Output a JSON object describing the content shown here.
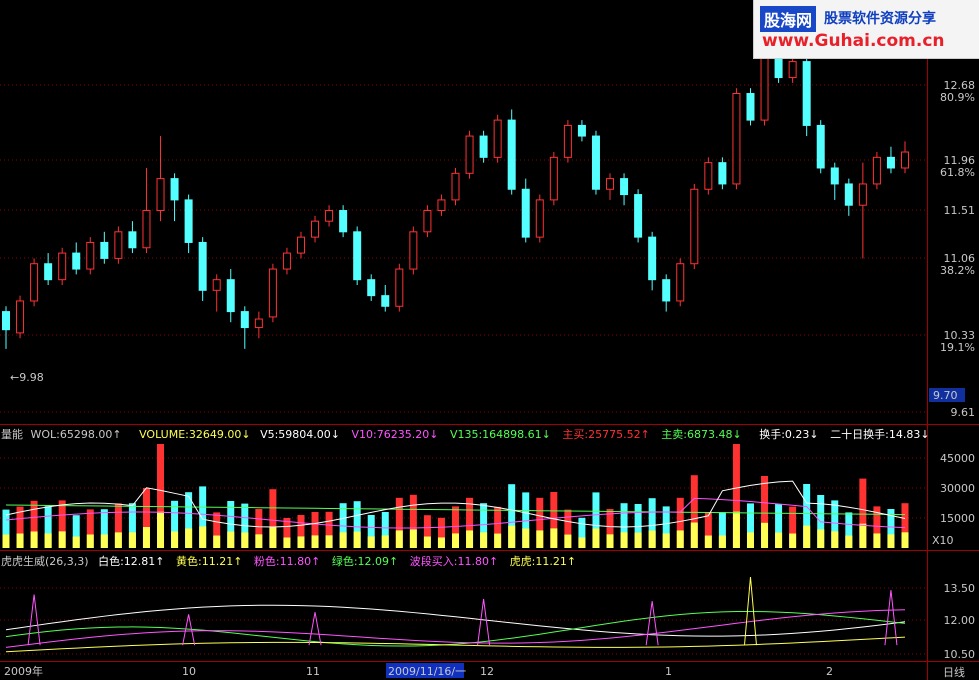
{
  "colors": {
    "up": "#ff3232",
    "down": "#54ffff",
    "white": "#ffffff",
    "yellow": "#ffff54",
    "pink": "#ff54ff",
    "green": "#54ff54",
    "grid": "#7a0000",
    "axis": "#ff3232",
    "ma5": "#ffffff",
    "ma10": "#ff54ff",
    "ma135": "#54ff54"
  },
  "watermark": {
    "brand": "股海网",
    "slogan": "股票软件资源分享",
    "url": "www.Guhai.com.cn"
  },
  "price_axis": [
    {
      "value": "12.68",
      "pct": "80.9%"
    },
    {
      "value": "11.96",
      "pct": "61.8%"
    },
    {
      "value": "11.51",
      "pct": ""
    },
    {
      "value": "11.06",
      "pct": "38.2%"
    },
    {
      "value": "10.33",
      "pct": "19.1%"
    },
    {
      "value": "9.61",
      "pct": ""
    }
  ],
  "price_marker": "9.70",
  "low_marker": "←9.98",
  "volume_header": [
    {
      "text": "量能",
      "color": "#c8c8c8"
    },
    {
      "text": "WOL:65298.00↑",
      "color": "#c8c8c8"
    },
    {
      "text": "VOLUME:32649.00↓",
      "color": "#ffff54"
    },
    {
      "text": "V5:59804.00↓",
      "color": "#ffffff"
    },
    {
      "text": "V10:76235.20↓",
      "color": "#ff54ff"
    },
    {
      "text": "V135:164898.61↓",
      "color": "#54ff54"
    },
    {
      "text": "主买:25775.52↑",
      "color": "#ff3232"
    },
    {
      "text": "主卖:6873.48↓",
      "color": "#54ff54"
    },
    {
      "text": "换手:0.23↓",
      "color": "#ffffff"
    },
    {
      "text": "二十日换手:14.83↓",
      "color": "#ffffff"
    }
  ],
  "volume_axis": [
    "45000",
    "30000",
    "15000"
  ],
  "volume_unit": "X10",
  "indicator_header": [
    {
      "text": "虎虎生威(26,3,3)",
      "color": "#c8c8c8"
    },
    {
      "text": "白色:12.81↑",
      "color": "#ffffff"
    },
    {
      "text": "黄色:11.21↑",
      "color": "#ffff54"
    },
    {
      "text": "粉色:11.80↑",
      "color": "#ff54ff"
    },
    {
      "text": "绿色:12.09↑",
      "color": "#54ff54"
    },
    {
      "text": "波段买入:11.80↑",
      "color": "#ff54ff"
    },
    {
      "text": "虎虎:11.21↑",
      "color": "#ffff54"
    }
  ],
  "indicator_axis": [
    "13.50",
    "12.00",
    "10.50"
  ],
  "time_axis": [
    {
      "text": "2009年"
    },
    {
      "text": "10"
    },
    {
      "text": "11"
    },
    {
      "text": "2009/11/16/一"
    },
    {
      "text": "12"
    },
    {
      "text": "1"
    },
    {
      "text": "2"
    }
  ],
  "period_label": "日线",
  "chart_data": {
    "type": "candlestick",
    "candles": [
      {
        "o": 10.55,
        "c": 10.38,
        "h": 10.6,
        "l": 10.2
      },
      {
        "o": 10.35,
        "c": 10.65,
        "h": 10.7,
        "l": 10.3
      },
      {
        "o": 10.65,
        "c": 11.0,
        "h": 11.05,
        "l": 10.6
      },
      {
        "o": 11.0,
        "c": 10.85,
        "h": 11.1,
        "l": 10.8
      },
      {
        "o": 10.85,
        "c": 11.1,
        "h": 11.15,
        "l": 10.8
      },
      {
        "o": 11.1,
        "c": 10.95,
        "h": 11.2,
        "l": 10.9
      },
      {
        "o": 10.95,
        "c": 11.2,
        "h": 11.25,
        "l": 10.9
      },
      {
        "o": 11.2,
        "c": 11.05,
        "h": 11.3,
        "l": 11.0
      },
      {
        "o": 11.05,
        "c": 11.3,
        "h": 11.35,
        "l": 11.0
      },
      {
        "o": 11.3,
        "c": 11.15,
        "h": 11.4,
        "l": 11.1
      },
      {
        "o": 11.15,
        "c": 11.5,
        "h": 11.9,
        "l": 11.1
      },
      {
        "o": 11.5,
        "c": 11.8,
        "h": 12.2,
        "l": 11.4
      },
      {
        "o": 11.8,
        "c": 11.6,
        "h": 11.85,
        "l": 11.4
      },
      {
        "o": 11.6,
        "c": 11.2,
        "h": 11.65,
        "l": 11.1
      },
      {
        "o": 11.2,
        "c": 10.75,
        "h": 11.25,
        "l": 10.65
      },
      {
        "o": 10.75,
        "c": 10.85,
        "h": 10.9,
        "l": 10.55
      },
      {
        "o": 10.85,
        "c": 10.55,
        "h": 10.95,
        "l": 10.45
      },
      {
        "o": 10.55,
        "c": 10.4,
        "h": 10.6,
        "l": 10.2
      },
      {
        "o": 10.4,
        "c": 10.48,
        "h": 10.55,
        "l": 10.3
      },
      {
        "o": 10.5,
        "c": 10.95,
        "h": 11.0,
        "l": 10.45
      },
      {
        "o": 10.95,
        "c": 11.1,
        "h": 11.15,
        "l": 10.9
      },
      {
        "o": 11.1,
        "c": 11.25,
        "h": 11.3,
        "l": 11.05
      },
      {
        "o": 11.25,
        "c": 11.4,
        "h": 11.45,
        "l": 11.2
      },
      {
        "o": 11.4,
        "c": 11.5,
        "h": 11.55,
        "l": 11.35
      },
      {
        "o": 11.5,
        "c": 11.3,
        "h": 11.55,
        "l": 11.25
      },
      {
        "o": 11.3,
        "c": 10.85,
        "h": 11.35,
        "l": 10.8
      },
      {
        "o": 10.85,
        "c": 10.7,
        "h": 10.9,
        "l": 10.65
      },
      {
        "o": 10.7,
        "c": 10.6,
        "h": 10.8,
        "l": 10.55
      },
      {
        "o": 10.6,
        "c": 10.95,
        "h": 11.0,
        "l": 10.55
      },
      {
        "o": 10.95,
        "c": 11.3,
        "h": 11.35,
        "l": 10.9
      },
      {
        "o": 11.3,
        "c": 11.5,
        "h": 11.55,
        "l": 11.25
      },
      {
        "o": 11.5,
        "c": 11.6,
        "h": 11.65,
        "l": 11.45
      },
      {
        "o": 11.6,
        "c": 11.85,
        "h": 11.9,
        "l": 11.55
      },
      {
        "o": 11.85,
        "c": 12.2,
        "h": 12.25,
        "l": 11.8
      },
      {
        "o": 12.2,
        "c": 12.0,
        "h": 12.25,
        "l": 11.95
      },
      {
        "o": 12.0,
        "c": 12.35,
        "h": 12.4,
        "l": 11.95
      },
      {
        "o": 12.35,
        "c": 11.7,
        "h": 12.45,
        "l": 11.65
      },
      {
        "o": 11.7,
        "c": 11.25,
        "h": 11.8,
        "l": 11.2
      },
      {
        "o": 11.25,
        "c": 11.6,
        "h": 11.65,
        "l": 11.2
      },
      {
        "o": 11.6,
        "c": 12.0,
        "h": 12.05,
        "l": 11.55
      },
      {
        "o": 12.0,
        "c": 12.3,
        "h": 12.35,
        "l": 11.95
      },
      {
        "o": 12.3,
        "c": 12.2,
        "h": 12.35,
        "l": 12.15
      },
      {
        "o": 12.2,
        "c": 11.7,
        "h": 12.25,
        "l": 11.65
      },
      {
        "o": 11.7,
        "c": 11.8,
        "h": 11.85,
        "l": 11.6
      },
      {
        "o": 11.8,
        "c": 11.65,
        "h": 11.85,
        "l": 11.55
      },
      {
        "o": 11.65,
        "c": 11.25,
        "h": 11.7,
        "l": 11.2
      },
      {
        "o": 11.25,
        "c": 10.85,
        "h": 11.3,
        "l": 10.75
      },
      {
        "o": 10.85,
        "c": 10.65,
        "h": 10.9,
        "l": 10.55
      },
      {
        "o": 10.65,
        "c": 11.0,
        "h": 11.05,
        "l": 10.6
      },
      {
        "o": 11.0,
        "c": 11.7,
        "h": 11.75,
        "l": 10.95
      },
      {
        "o": 11.7,
        "c": 11.95,
        "h": 12.0,
        "l": 11.65
      },
      {
        "o": 11.95,
        "c": 11.75,
        "h": 12.0,
        "l": 11.7
      },
      {
        "o": 11.75,
        "c": 12.6,
        "h": 12.65,
        "l": 11.7
      },
      {
        "o": 12.6,
        "c": 12.35,
        "h": 12.65,
        "l": 12.3
      },
      {
        "o": 12.35,
        "c": 13.1,
        "h": 13.2,
        "l": 12.3
      },
      {
        "o": 13.1,
        "c": 12.75,
        "h": 13.2,
        "l": 12.7
      },
      {
        "o": 12.75,
        "c": 12.9,
        "h": 13.1,
        "l": 12.7
      },
      {
        "o": 12.9,
        "c": 12.3,
        "h": 12.95,
        "l": 12.2
      },
      {
        "o": 12.3,
        "c": 11.9,
        "h": 12.35,
        "l": 11.85
      },
      {
        "o": 11.9,
        "c": 11.75,
        "h": 11.95,
        "l": 11.6
      },
      {
        "o": 11.75,
        "c": 11.55,
        "h": 11.8,
        "l": 11.45
      },
      {
        "o": 11.55,
        "c": 11.75,
        "h": 11.95,
        "l": 11.05
      },
      {
        "o": 11.75,
        "c": 12.0,
        "h": 12.05,
        "l": 11.7
      },
      {
        "o": 12.0,
        "c": 11.9,
        "h": 12.1,
        "l": 11.85
      },
      {
        "o": 11.9,
        "c": 12.05,
        "h": 12.15,
        "l": 11.85
      }
    ]
  }
}
